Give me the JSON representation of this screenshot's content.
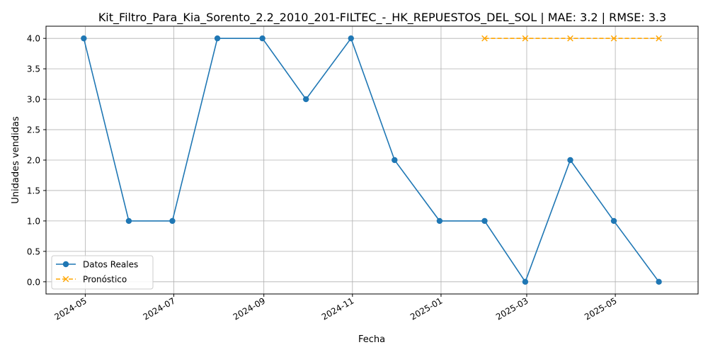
{
  "chart_data": {
    "type": "line",
    "title": "Kit_Filtro_Para_Kia_Sorento_2.2_2010_201-FILTEC_-_HK_REPUESTOS_DEL_SOL | MAE: 3.2 | RMSE: 3.3",
    "xlabel": "Fecha",
    "ylabel": "Unidades vendidas",
    "xlim": [
      "2024-04-04",
      "2025-06-27"
    ],
    "ylim": [
      -0.2,
      4.2
    ],
    "x_ticks": [
      "2024-05",
      "2024-07",
      "2024-09",
      "2024-11",
      "2025-01",
      "2025-03",
      "2025-05"
    ],
    "y_ticks": [
      "0.0",
      "0.5",
      "1.0",
      "1.5",
      "2.0",
      "2.5",
      "3.0",
      "3.5",
      "4.0"
    ],
    "grid": true,
    "legend_position": "lower-left",
    "series": [
      {
        "name": "Datos Reales",
        "color": "#1f77b4",
        "style": "solid",
        "marker": "circle",
        "x": [
          "2024-04-30",
          "2024-05-31",
          "2024-06-30",
          "2024-07-31",
          "2024-08-31",
          "2024-09-30",
          "2024-10-31",
          "2024-11-30",
          "2024-12-31",
          "2025-01-31",
          "2025-02-28",
          "2025-03-31",
          "2025-04-30",
          "2025-05-31"
        ],
        "values": [
          4,
          1,
          1,
          4,
          4,
          3,
          4,
          2,
          1,
          1,
          0,
          2,
          1,
          0
        ]
      },
      {
        "name": "Pronóstico",
        "color": "#ffa500",
        "style": "dashed",
        "marker": "x",
        "x": [
          "2025-01-31",
          "2025-02-28",
          "2025-03-31",
          "2025-04-30",
          "2025-05-31"
        ],
        "values": [
          4,
          4,
          4,
          4,
          4
        ]
      }
    ]
  }
}
